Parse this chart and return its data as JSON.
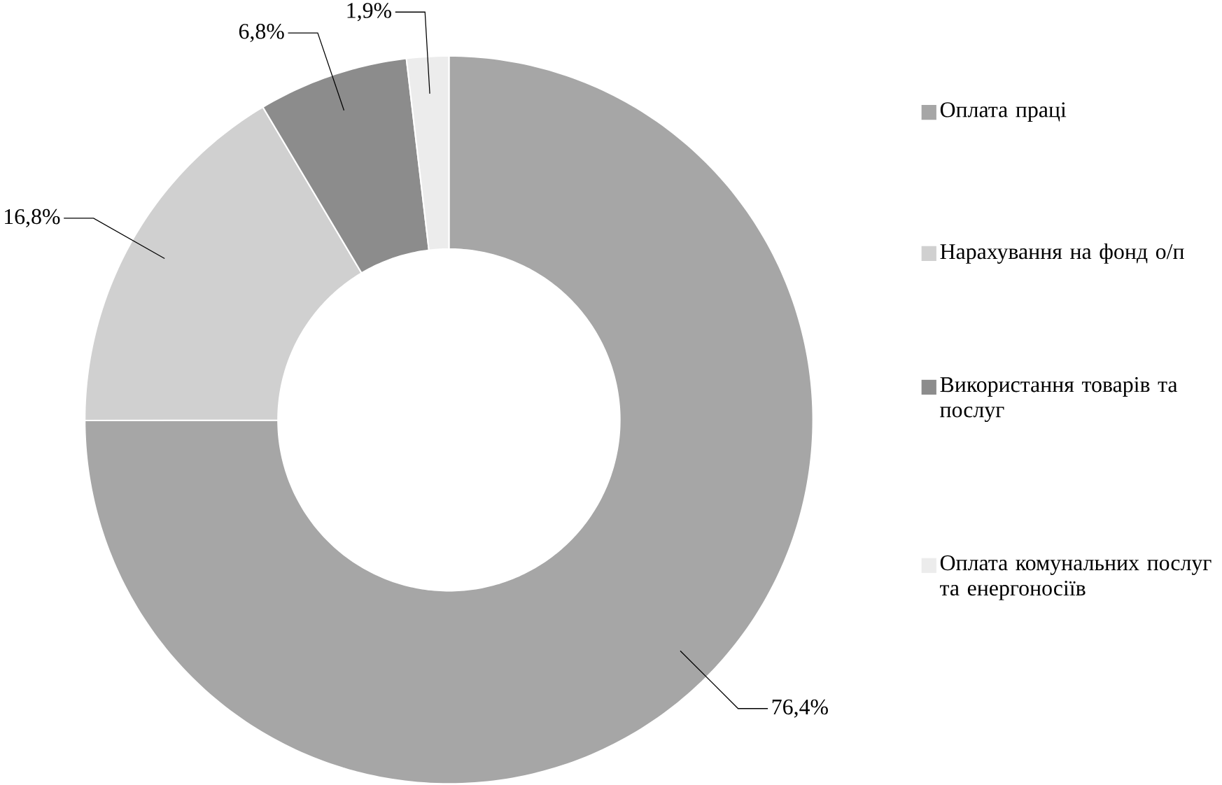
{
  "chart_data": {
    "type": "donut",
    "categories": [
      "Оплата праці",
      "Нарахування на фонд о/п",
      "Використання товарів та послуг",
      "Оплата комунальних послуг та енергоносіїв"
    ],
    "values": [
      76.4,
      16.8,
      6.8,
      1.9
    ],
    "value_labels": [
      "76,4%",
      "16,8%",
      "6,8%",
      "1,9%"
    ],
    "colors": [
      "#a6a6a6",
      "#d0d0d0",
      "#8c8c8c",
      "#ececec"
    ],
    "legend": "right"
  }
}
